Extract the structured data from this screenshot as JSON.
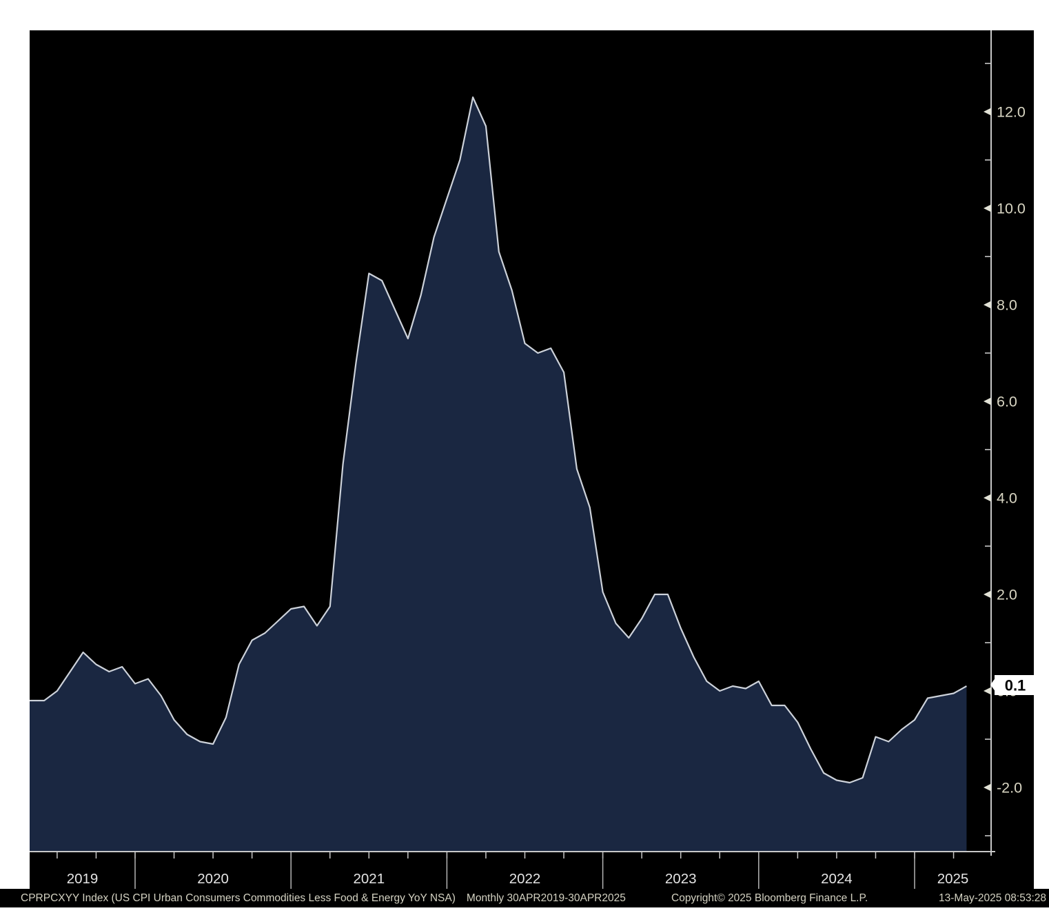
{
  "chart_data": {
    "type": "area",
    "title": "",
    "ticker": "CPRPCXYY Index",
    "series_name": "US CPI Urban Consumers Commodities Less Food & Energy YoY NSA",
    "frequency": "Monthly",
    "start_month": "2019-04",
    "end_month": "2025-04",
    "values": [
      -0.2,
      -0.2,
      0.0,
      0.4,
      0.8,
      0.55,
      0.4,
      0.5,
      0.15,
      0.25,
      -0.1,
      -0.6,
      -0.9,
      -1.05,
      -1.1,
      -0.55,
      0.55,
      1.05,
      1.2,
      1.45,
      1.7,
      1.75,
      1.35,
      1.75,
      4.7,
      6.8,
      8.65,
      8.5,
      7.9,
      7.3,
      8.2,
      9.4,
      10.2,
      11.0,
      12.3,
      11.7,
      9.1,
      8.3,
      7.2,
      7.0,
      7.1,
      6.6,
      4.6,
      3.8,
      2.05,
      1.4,
      1.1,
      1.5,
      2.0,
      2.0,
      1.3,
      0.7,
      0.2,
      0.0,
      0.1,
      0.05,
      0.2,
      -0.3,
      -0.3,
      -0.65,
      -1.2,
      -1.7,
      -1.85,
      -1.9,
      -1.8,
      -0.95,
      -1.05,
      -0.8,
      -0.6,
      -0.15,
      -0.1,
      -0.05,
      0.1
    ],
    "last_value_label": "0.1",
    "x_tick_years": [
      "2019",
      "2020",
      "2021",
      "2022",
      "2023",
      "2024",
      "2025"
    ],
    "y_major_ticks": [
      {
        "v": 12,
        "label": "12.0"
      },
      {
        "v": 10,
        "label": "10.0"
      },
      {
        "v": 8,
        "label": "8.0"
      },
      {
        "v": 6,
        "label": "6.0"
      },
      {
        "v": 4,
        "label": "4.0"
      },
      {
        "v": 2,
        "label": "2.0"
      },
      {
        "v": 0,
        "label": "0.0"
      },
      {
        "v": -2,
        "label": "-2.0"
      }
    ],
    "y_minor_ticks": [
      13,
      11,
      9,
      7,
      5,
      3,
      1,
      -1,
      -3
    ],
    "ylim": [
      -3.3,
      13.7
    ],
    "grid": "off",
    "legend": "none",
    "y_axis_position": "right"
  },
  "colors": {
    "background": "#000000",
    "page_margin": "#ffffff",
    "area_fill": "#1a2741",
    "series_line": "#cdd2da",
    "axis_line": "#c8c8c8",
    "divider_line": "#b5b5b5",
    "y_label": "#d9d6c3",
    "year_label": "#e4e4e4",
    "badge_bg": "#ffffff",
    "badge_text": "#000000"
  },
  "footer": {
    "desc": "CPRPCXYY Index (US CPI Urban Consumers Commodities Less Food & Energy YoY NSA)",
    "period": "Monthly 30APR2019-30APR2025",
    "copyright": "Copyright© 2025 Bloomberg Finance L.P.",
    "timestamp": "13-May-2025 08:53:28"
  }
}
